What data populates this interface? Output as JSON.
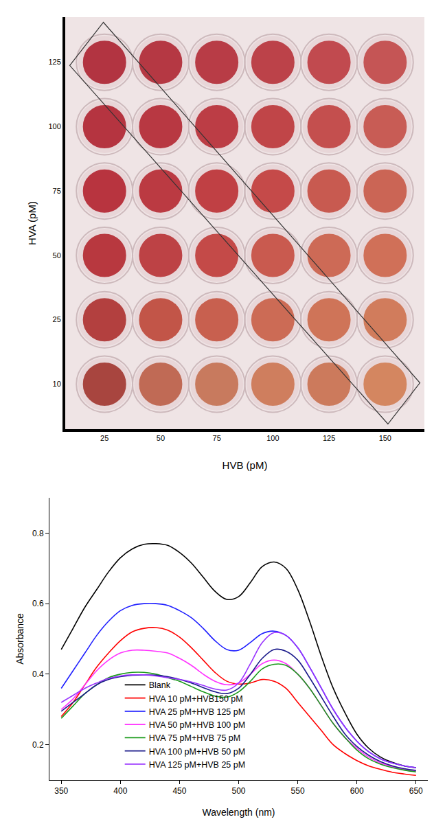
{
  "chart_data": [
    {
      "type": "scatter",
      "marker": "circle",
      "grid": false,
      "x_label": "HVB (pM)",
      "y_label": "HVA (pM)",
      "categories": [
        25,
        50,
        75,
        100,
        125,
        150
      ],
      "y_categories": [
        10,
        25,
        50,
        75,
        100,
        125
      ],
      "cell_colors": [
        [
          "#a8453f",
          "#c06a55",
          "#c87a5e",
          "#cf7e5e",
          "#cc7a5c",
          "#d48660"
        ],
        [
          "#b3403f",
          "#c25548",
          "#c8604f",
          "#cc6b55",
          "#cf7458",
          "#d17c5c"
        ],
        [
          "#b8383f",
          "#bd4245",
          "#c44a48",
          "#c95a4f",
          "#cd6a56",
          "#d07058"
        ],
        [
          "#b8343f",
          "#bb3a42",
          "#c04044",
          "#c54a49",
          "#c85a50",
          "#cb6555"
        ],
        [
          "#b53440",
          "#b83842",
          "#bc3d45",
          "#c04548",
          "#c44f4e",
          "#c85c55"
        ],
        [
          "#b23441",
          "#b53843",
          "#b83c46",
          "#bc4249",
          "#c14a4f",
          "#c55555"
        ]
      ]
    },
    {
      "type": "line",
      "grid": false,
      "legend": "lower left",
      "x_label": "Wavelength (nm)",
      "y_label": "Absorbance",
      "x": [
        350,
        360,
        370,
        380,
        390,
        400,
        410,
        420,
        430,
        440,
        450,
        460,
        470,
        480,
        490,
        500,
        510,
        520,
        530,
        540,
        550,
        560,
        570,
        580,
        590,
        600,
        610,
        620,
        630,
        640,
        650
      ],
      "xlim": [
        340,
        660
      ],
      "xticks": [
        350,
        400,
        450,
        500,
        550,
        600,
        650
      ],
      "ylim": [
        0.1,
        0.9
      ],
      "yticks": [
        0.2,
        0.4,
        0.6,
        0.8
      ],
      "series": [
        {
          "name": "Blank",
          "color": "#000000",
          "values": [
            0.47,
            0.53,
            0.59,
            0.64,
            0.69,
            0.73,
            0.755,
            0.768,
            0.77,
            0.765,
            0.745,
            0.715,
            0.675,
            0.635,
            0.612,
            0.62,
            0.66,
            0.705,
            0.718,
            0.7,
            0.64,
            0.55,
            0.45,
            0.36,
            0.29,
            0.23,
            0.19,
            0.165,
            0.15,
            0.14,
            0.135
          ]
        },
        {
          "name": "HVA 10 pM+HVB150 pM",
          "color": "#ff0000",
          "values": [
            0.28,
            0.32,
            0.37,
            0.42,
            0.46,
            0.495,
            0.52,
            0.53,
            0.532,
            0.525,
            0.505,
            0.475,
            0.44,
            0.405,
            0.38,
            0.372,
            0.375,
            0.385,
            0.38,
            0.36,
            0.32,
            0.28,
            0.24,
            0.2,
            0.175,
            0.155,
            0.14,
            0.13,
            0.122,
            0.117,
            0.113
          ]
        },
        {
          "name": "HVA 25 pM+HVB 125 pM",
          "color": "#1f1fff",
          "values": [
            0.36,
            0.41,
            0.46,
            0.51,
            0.55,
            0.58,
            0.595,
            0.6,
            0.6,
            0.595,
            0.58,
            0.56,
            0.53,
            0.495,
            0.47,
            0.468,
            0.49,
            0.515,
            0.522,
            0.51,
            0.475,
            0.42,
            0.36,
            0.3,
            0.25,
            0.21,
            0.18,
            0.16,
            0.148,
            0.14,
            0.135
          ]
        },
        {
          "name": "HVA 50 pM+HVB 100 pM",
          "color": "#ff33ff",
          "values": [
            0.3,
            0.33,
            0.37,
            0.41,
            0.44,
            0.46,
            0.468,
            0.468,
            0.465,
            0.46,
            0.445,
            0.425,
            0.4,
            0.38,
            0.37,
            0.375,
            0.4,
            0.43,
            0.44,
            0.43,
            0.4,
            0.36,
            0.31,
            0.26,
            0.22,
            0.19,
            0.165,
            0.148,
            0.138,
            0.13,
            0.125
          ]
        },
        {
          "name": "HVA 75 pM+HVB 75 pM",
          "color": "#1a9a1a",
          "values": [
            0.275,
            0.31,
            0.345,
            0.37,
            0.39,
            0.4,
            0.405,
            0.405,
            0.4,
            0.39,
            0.38,
            0.365,
            0.35,
            0.338,
            0.335,
            0.35,
            0.38,
            0.415,
            0.428,
            0.425,
            0.4,
            0.36,
            0.31,
            0.26,
            0.22,
            0.185,
            0.16,
            0.145,
            0.135,
            0.128,
            0.123
          ]
        },
        {
          "name": "HVA 100 pM+HVB 50 pM",
          "color": "#1a1a8a",
          "values": [
            0.295,
            0.32,
            0.345,
            0.37,
            0.385,
            0.393,
            0.397,
            0.398,
            0.397,
            0.393,
            0.385,
            0.375,
            0.362,
            0.35,
            0.345,
            0.36,
            0.4,
            0.445,
            0.47,
            0.465,
            0.44,
            0.39,
            0.335,
            0.28,
            0.23,
            0.195,
            0.17,
            0.152,
            0.14,
            0.132,
            0.127
          ]
        },
        {
          "name": "HVA 125 pM+HVB 25 pM",
          "color": "#9933ff",
          "values": [
            0.32,
            0.34,
            0.36,
            0.375,
            0.388,
            0.395,
            0.398,
            0.398,
            0.395,
            0.39,
            0.385,
            0.378,
            0.368,
            0.358,
            0.355,
            0.375,
            0.43,
            0.49,
            0.518,
            0.51,
            0.475,
            0.42,
            0.36,
            0.3,
            0.25,
            0.21,
            0.18,
            0.16,
            0.148,
            0.14,
            0.135
          ]
        }
      ]
    }
  ]
}
